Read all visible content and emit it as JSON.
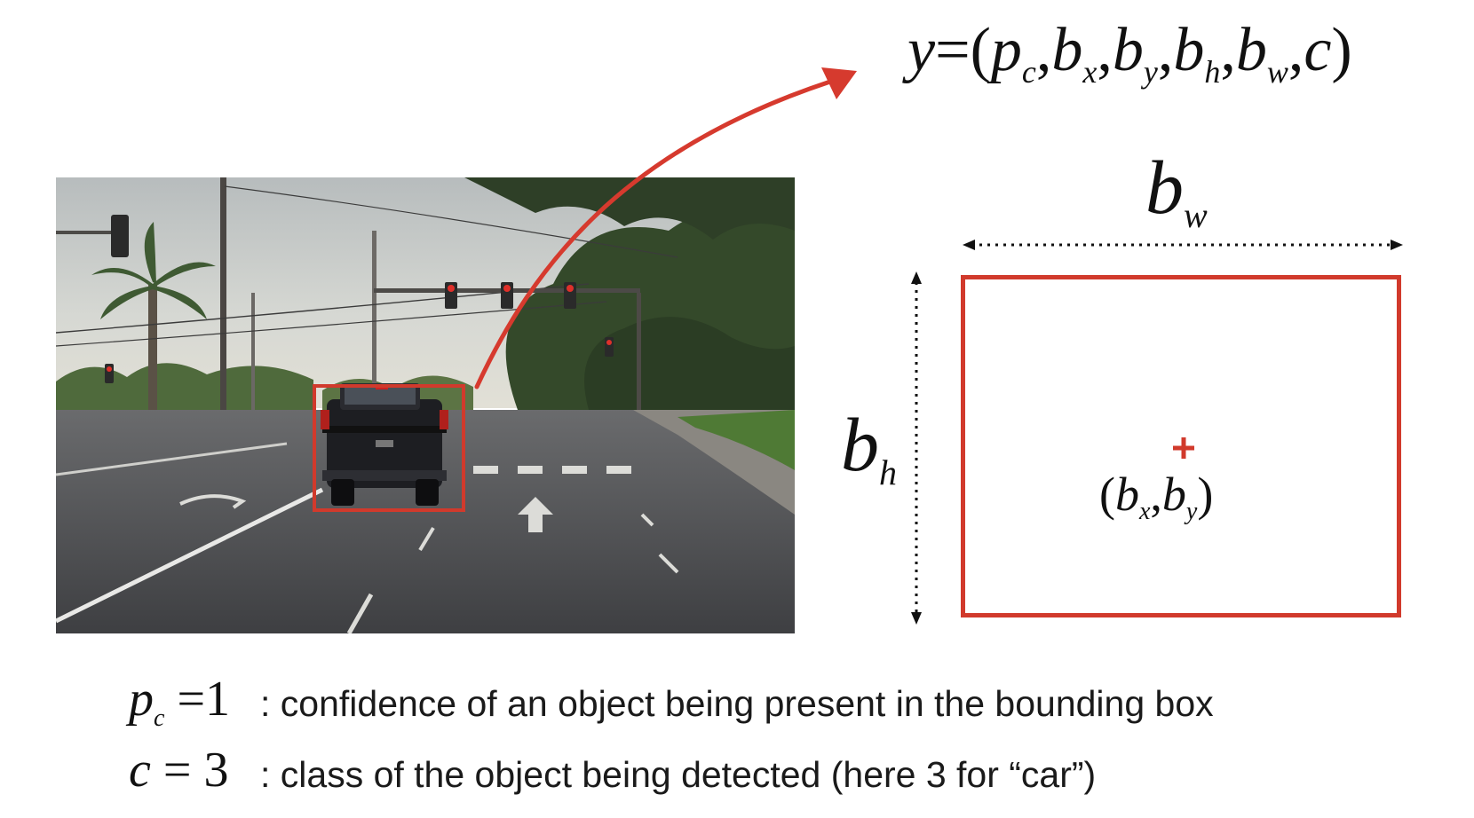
{
  "formula": {
    "lhs": "y",
    "eq": "=",
    "open": "(",
    "close": ")",
    "comma": ",",
    "terms": [
      {
        "base": "p",
        "sub": "c"
      },
      {
        "base": "b",
        "sub": "x"
      },
      {
        "base": "b",
        "sub": "y"
      },
      {
        "base": "b",
        "sub": "h"
      },
      {
        "base": "b",
        "sub": "w"
      },
      {
        "base": "c",
        "sub": ""
      }
    ]
  },
  "box_labels": {
    "width": {
      "base": "b",
      "sub": "w"
    },
    "height": {
      "base": "b",
      "sub": "h"
    },
    "center": {
      "open": "(",
      "b1": "b",
      "s1": "x",
      "comma": ",",
      "b2": "b",
      "s2": "y",
      "close": ")"
    }
  },
  "legend": [
    {
      "sym_base": "p",
      "sym_sub": "c",
      "sym_rest": " =1",
      "text": ": confidence of an object being present in the bounding box"
    },
    {
      "sym_base": "c",
      "sym_sub": "",
      "sym_rest": " = 3",
      "text": ": class of the object being detected (here 3 for “car”)"
    }
  ],
  "colors": {
    "box": "#d13a2c",
    "arrow": "#d63a2e",
    "text": "#111111"
  },
  "icons": {
    "center": "plus-icon"
  }
}
